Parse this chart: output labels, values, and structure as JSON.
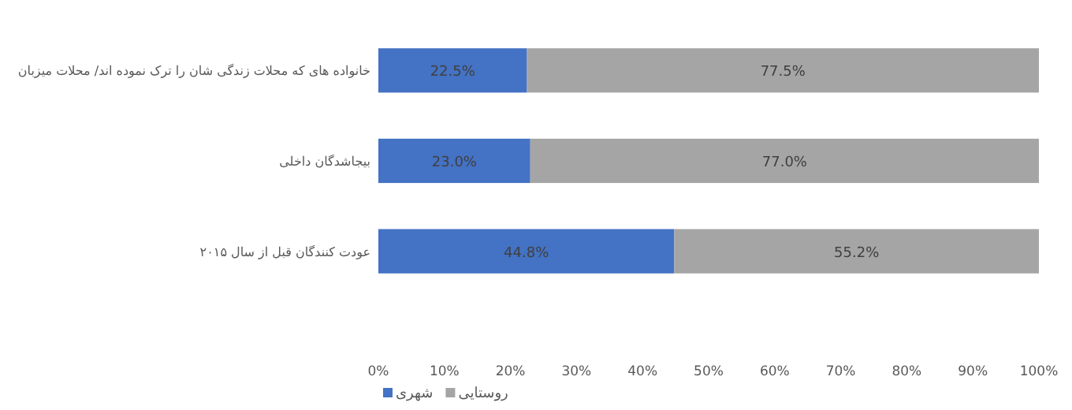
{
  "chart_data": {
    "type": "bar",
    "orientation": "horizontal",
    "stacked": true,
    "categories": [
      "خانواده های که محلات زندگی شان را ترک نموده اند/ محلات میزبان",
      "بیجاشدگان داخلی",
      "عودت کنندگان قبل از سال ۲۰۱۵"
    ],
    "series": [
      {
        "name": "شهری",
        "color": "#4472c4",
        "values": [
          22.5,
          23.0,
          44.8
        ],
        "value_labels": [
          "22.5%",
          "23.0%",
          "44.8%"
        ]
      },
      {
        "name": "روستایی",
        "color": "#a5a5a5",
        "values": [
          77.5,
          77.0,
          55.2
        ],
        "value_labels": [
          "77.5%",
          "77.0%",
          "55.2%"
        ]
      }
    ],
    "xlim": [
      0,
      100
    ],
    "xticks": [
      {
        "value": 0,
        "label": "0%"
      },
      {
        "value": 10,
        "label": "10%"
      },
      {
        "value": 20,
        "label": "20%"
      },
      {
        "value": 30,
        "label": "30%"
      },
      {
        "value": 40,
        "label": "40%"
      },
      {
        "value": 50,
        "label": "50%"
      },
      {
        "value": 60,
        "label": "60%"
      },
      {
        "value": 70,
        "label": "70%"
      },
      {
        "value": 80,
        "label": "80%"
      },
      {
        "value": 90,
        "label": "90%"
      },
      {
        "value": 100,
        "label": "100%"
      }
    ],
    "legend": "bottom"
  }
}
